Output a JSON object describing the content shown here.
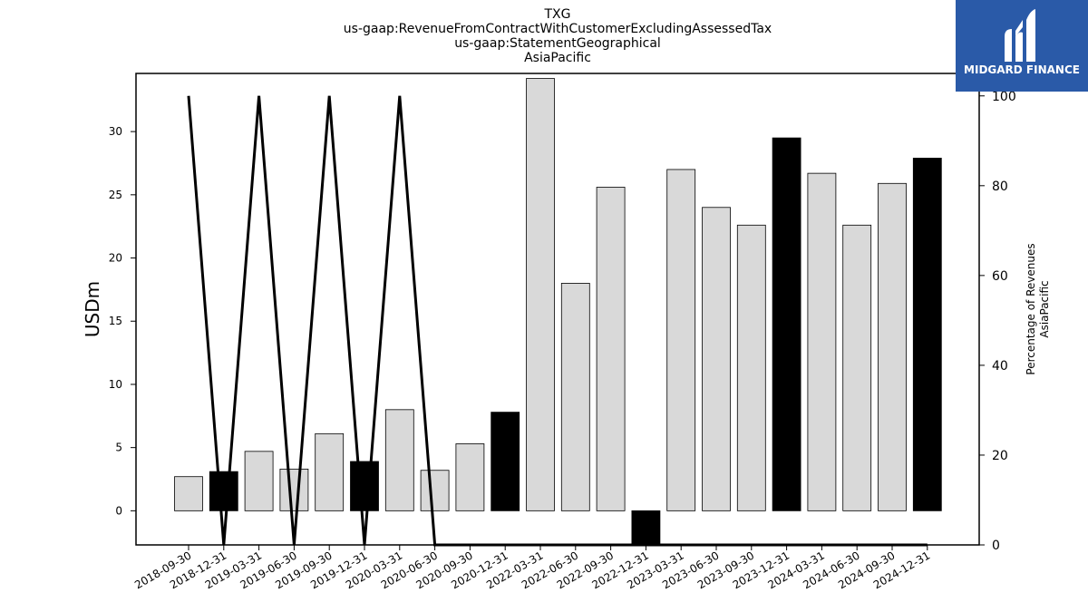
{
  "chart_data": {
    "type": "bar",
    "title_lines": [
      "TXG",
      "us-gaap:RevenueFromContractWithCustomerExcludingAssessedTax",
      "us-gaap:StatementGeographical",
      "AsiaPacific"
    ],
    "ylabel": "USDm",
    "ylabel_right_lines": [
      "Percentage of Revenues",
      "AsiaPacific"
    ],
    "ylim": [
      -2.7,
      34.6
    ],
    "ylim_right": [
      0,
      105
    ],
    "yticks": [
      0,
      5,
      10,
      15,
      20,
      25,
      30
    ],
    "yticks_right": [
      0,
      20,
      40,
      60,
      80,
      100
    ],
    "grid": false,
    "categories": [
      "2018-09-30",
      "2018-12-31",
      "2019-03-31",
      "2019-06-30",
      "2019-09-30",
      "2019-12-31",
      "2020-03-31",
      "2020-06-30",
      "2020-09-30",
      "2020-12-31",
      "2022-03-31",
      "2022-06-30",
      "2022-09-30",
      "2022-12-31",
      "2023-03-31",
      "2023-06-30",
      "2023-09-30",
      "2023-12-31",
      "2024-03-31",
      "2024-06-30",
      "2024-09-30",
      "2024-12-31"
    ],
    "series": [
      {
        "type": "bar",
        "axis": "left",
        "values": [
          2.7,
          3.1,
          4.7,
          3.3,
          6.1,
          3.9,
          8.0,
          3.2,
          5.3,
          7.8,
          34.2,
          18.0,
          25.6,
          -2.7,
          27.0,
          24.0,
          22.6,
          29.5,
          26.7,
          22.6,
          25.9,
          27.9
        ],
        "colors": [
          "#d9d9d9",
          "#000000",
          "#d9d9d9",
          "#d9d9d9",
          "#d9d9d9",
          "#000000",
          "#d9d9d9",
          "#d9d9d9",
          "#d9d9d9",
          "#000000",
          "#d9d9d9",
          "#d9d9d9",
          "#d9d9d9",
          "#000000",
          "#d9d9d9",
          "#d9d9d9",
          "#d9d9d9",
          "#000000",
          "#d9d9d9",
          "#d9d9d9",
          "#d9d9d9",
          "#000000"
        ]
      },
      {
        "type": "line",
        "axis": "right",
        "color": "#000000",
        "values": [
          100,
          0,
          100,
          0,
          100,
          0,
          100,
          0,
          0,
          0,
          0,
          0,
          0,
          0,
          0,
          0,
          0,
          0,
          0,
          0,
          0,
          0
        ]
      }
    ]
  },
  "logo": {
    "text": "MIDGARD FINANCE",
    "background": "#2a5aa8",
    "icon": "midgard-logo-icon"
  }
}
